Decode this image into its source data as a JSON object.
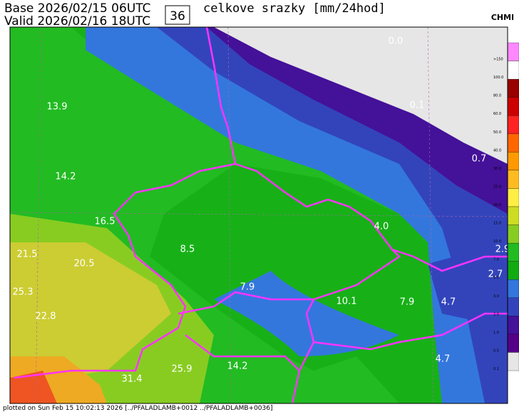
{
  "header": {
    "base": "Base 2026/02/15 06UTC",
    "valid": "Valid 2026/02/16 18UTC",
    "forecast_hour": "36",
    "title": "celkove srazky [mm/24hod]",
    "logo": "CHMI"
  },
  "map": {
    "labels": [
      "0.0",
      "0.1",
      "13.9",
      "0.7",
      "14.2",
      "16.5",
      "4.0",
      "8.5",
      "2.9",
      "21.5",
      "20.5",
      "2.7",
      "25.3",
      "7.9",
      "10.1",
      "7.9",
      "4.7",
      "22.8",
      "4.7",
      "31.4",
      "25.9",
      "14.2"
    ]
  },
  "colorbar": {
    "labels": [
      ">150",
      "100.0",
      "80.0",
      "60.0",
      "50.0",
      "40.0",
      "30.0",
      "25.0",
      "20.0",
      "15.0",
      "10.0",
      "7.0",
      "5.0",
      "3.0",
      "2.0",
      "1.0",
      "0.5",
      "0.1"
    ]
  },
  "footer": {
    "text": "plotted on Sun Feb 15 10:02:13 2026 [../PFALADLAMB+0012 ../PFALADLAMB+0036]"
  }
}
